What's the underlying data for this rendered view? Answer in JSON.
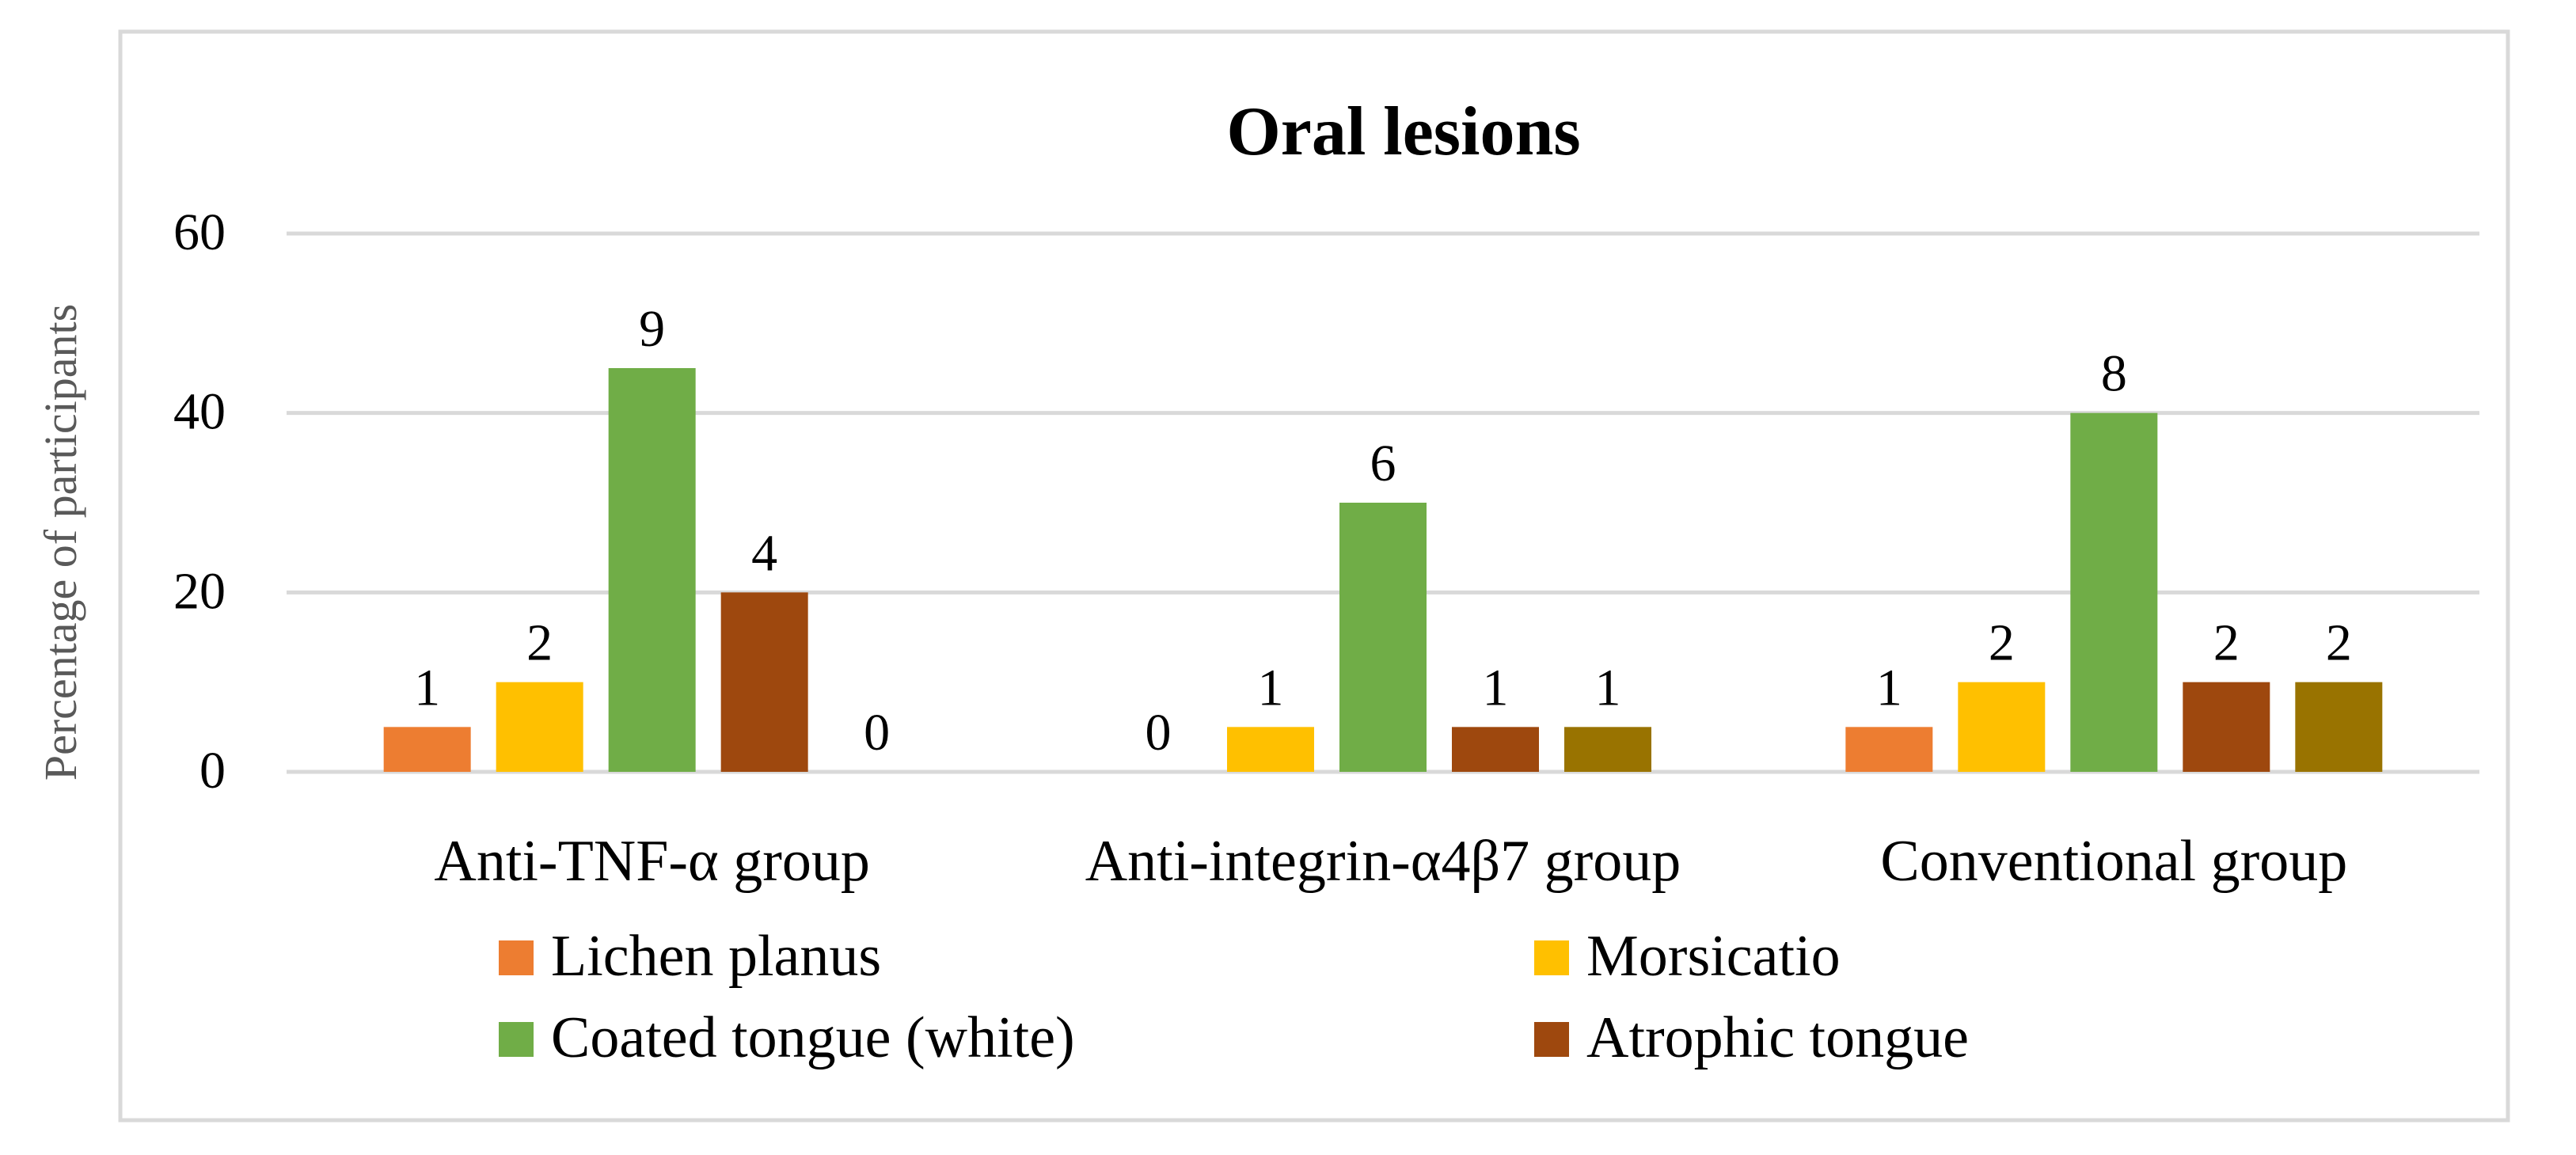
{
  "chart_data": {
    "type": "bar",
    "title": "Oral lesions",
    "xlabel": "",
    "ylabel": "Percentage of participants",
    "ylim": [
      0,
      60
    ],
    "yticks": [
      0,
      20,
      40,
      60
    ],
    "grid": true,
    "legend_position": "bottom",
    "categories": [
      "Anti-TNF-α group",
      "Anti-integrin-α4β7 group",
      "Conventional group"
    ],
    "series": [
      {
        "name": "Lichen planus",
        "color": "#ED7D31",
        "values": [
          5,
          0,
          5
        ],
        "labels": [
          "1",
          "0",
          "1"
        ]
      },
      {
        "name": "Morsicatio",
        "color": "#FFC000",
        "values": [
          10,
          5,
          10
        ],
        "labels": [
          "2",
          "1",
          "2"
        ]
      },
      {
        "name": "Coated tongue (white)",
        "color": "#70AD47",
        "values": [
          45,
          30,
          40
        ],
        "labels": [
          "9",
          "6",
          "8"
        ]
      },
      {
        "name": "Atrophic tongue",
        "color": "#9E480E",
        "values": [
          20,
          5,
          10
        ],
        "labels": [
          "4",
          "1",
          "2"
        ]
      },
      {
        "name": "",
        "color": "#997300",
        "values": [
          0,
          5,
          10
        ],
        "labels": [
          "0",
          "1",
          "2"
        ]
      }
    ],
    "legend_entries": [
      "Lichen planus",
      "Morsicatio",
      "Coated tongue (white)",
      "Atrophic tongue"
    ]
  }
}
